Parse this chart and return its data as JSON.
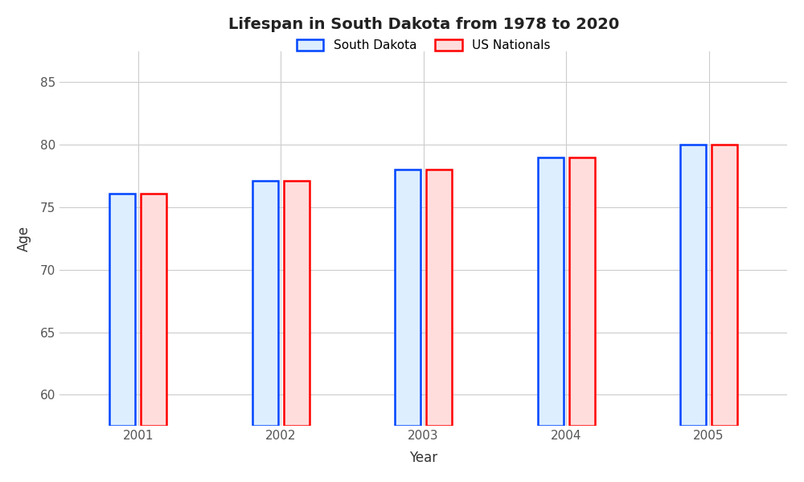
{
  "title": "Lifespan in South Dakota from 1978 to 2020",
  "xlabel": "Year",
  "ylabel": "Age",
  "years": [
    2001,
    2002,
    2003,
    2004,
    2005
  ],
  "south_dakota": [
    76.1,
    77.1,
    78.0,
    79.0,
    80.0
  ],
  "us_nationals": [
    76.1,
    77.1,
    78.0,
    79.0,
    80.0
  ],
  "ylim": [
    57.5,
    87.5
  ],
  "yticks": [
    60,
    65,
    70,
    75,
    80,
    85
  ],
  "bar_width": 0.18,
  "sd_face_color": "#ddeeff",
  "sd_edge_color": "#0044ff",
  "us_face_color": "#ffdddd",
  "us_edge_color": "#ff0000",
  "background_color": "#ffffff",
  "grid_color": "#cccccc",
  "title_fontsize": 14,
  "axis_label_fontsize": 12,
  "tick_fontsize": 11,
  "legend_fontsize": 11
}
